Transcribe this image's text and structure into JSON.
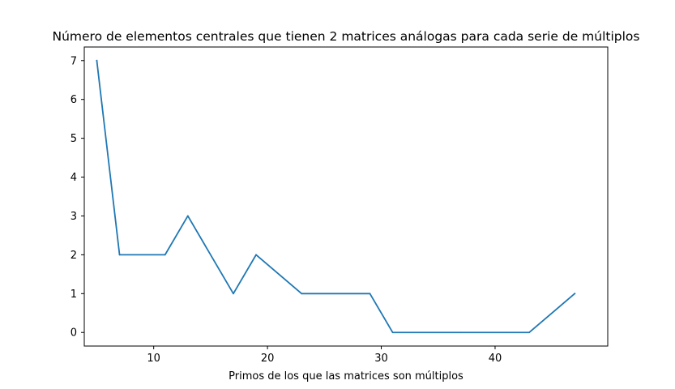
{
  "chart_data": {
    "type": "line",
    "title": "Número de elementos centrales que tienen 2 matrices análogas para cada serie de múltiplos",
    "xlabel": "Primos de los que las matrices son múltiplos",
    "ylabel": "",
    "xlim": [
      3.9,
      49.9
    ],
    "ylim": [
      -0.35,
      7.35
    ],
    "xticks": [
      10,
      20,
      30,
      40
    ],
    "yticks": [
      0,
      1,
      2,
      3,
      4,
      5,
      6,
      7
    ],
    "grid": false,
    "series": [
      {
        "color": "#1f77b4",
        "x": [
          5,
          7,
          11,
          13,
          17,
          19,
          23,
          29,
          31,
          37,
          41,
          43,
          47
        ],
        "y": [
          7,
          2,
          2,
          3,
          1,
          2,
          1,
          1,
          0,
          0,
          0,
          0,
          1
        ]
      }
    ]
  }
}
